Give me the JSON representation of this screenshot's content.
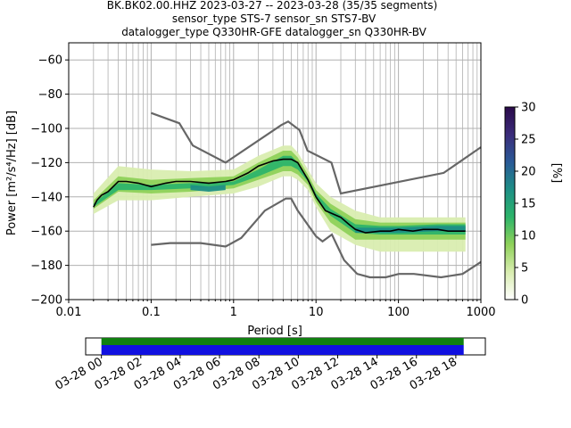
{
  "chart_data": {
    "type": "heatmap",
    "title_lines": [
      "BK.BK02.00.HHZ   2023-03-27 -- 2023-03-28  (35/35 segments)",
      "sensor_type STS-7 sensor_sn STS7-BV",
      "datalogger_type Q330HR-GFE datalogger_sn Q330HR-BV"
    ],
    "xlabel": "Period [s]",
    "ylabel": "Power [m²/s⁴/Hz] [dB]",
    "x_scale": "log",
    "xlim": [
      0.01,
      1000
    ],
    "ylim": [
      -200,
      -50
    ],
    "x_ticks": [
      {
        "value": 0.01,
        "label": "0.01"
      },
      {
        "value": 0.1,
        "label": "0.1"
      },
      {
        "value": 1,
        "label": "1"
      },
      {
        "value": 10,
        "label": "10"
      },
      {
        "value": 100,
        "label": "100"
      },
      {
        "value": 1000,
        "label": "1000"
      }
    ],
    "y_ticks": [
      {
        "value": -60,
        "label": "−60"
      },
      {
        "value": -80,
        "label": "−80"
      },
      {
        "value": -100,
        "label": "−100"
      },
      {
        "value": -120,
        "label": "−120"
      },
      {
        "value": -140,
        "label": "−140"
      },
      {
        "value": -160,
        "label": "−160"
      },
      {
        "value": -180,
        "label": "−180"
      },
      {
        "value": -200,
        "label": "−200"
      }
    ],
    "grid": true,
    "colorbar": {
      "label": "[%]",
      "range": [
        0,
        30
      ],
      "ticks": [
        {
          "value": 0,
          "label": "0"
        },
        {
          "value": 5,
          "label": "5"
        },
        {
          "value": 10,
          "label": "10"
        },
        {
          "value": 15,
          "label": "15"
        },
        {
          "value": 20,
          "label": "20"
        },
        {
          "value": 25,
          "label": "25"
        },
        {
          "value": 30,
          "label": "30"
        }
      ],
      "colors": [
        "#ffffff",
        "#d9edb0",
        "#8fd15a",
        "#2db46a",
        "#1e8f86",
        "#2a5a97",
        "#3b2c7a",
        "#2a0a4a"
      ]
    },
    "mean_curve": {
      "color": "#000000",
      "points": [
        [
          0.02,
          -146
        ],
        [
          0.022,
          -142
        ],
        [
          0.025,
          -139
        ],
        [
          0.03,
          -137
        ],
        [
          0.04,
          -131
        ],
        [
          0.05,
          -131
        ],
        [
          0.07,
          -132
        ],
        [
          0.1,
          -134
        ],
        [
          0.15,
          -132
        ],
        [
          0.2,
          -131
        ],
        [
          0.3,
          -131
        ],
        [
          0.5,
          -132
        ],
        [
          0.8,
          -131
        ],
        [
          1,
          -130
        ],
        [
          1.5,
          -126
        ],
        [
          2,
          -122
        ],
        [
          3,
          -119
        ],
        [
          4,
          -118
        ],
        [
          5,
          -118
        ],
        [
          6,
          -120
        ],
        [
          8,
          -130
        ],
        [
          10,
          -140
        ],
        [
          13,
          -148
        ],
        [
          20,
          -152
        ],
        [
          25,
          -156
        ],
        [
          30,
          -159
        ],
        [
          40,
          -161
        ],
        [
          60,
          -160
        ],
        [
          80,
          -160
        ],
        [
          100,
          -159
        ],
        [
          150,
          -160
        ],
        [
          200,
          -159
        ],
        [
          300,
          -159
        ],
        [
          400,
          -160
        ],
        [
          650,
          -160
        ]
      ]
    },
    "noise_models": [
      {
        "name": "high",
        "color": "#666666",
        "points": [
          [
            0.1,
            -91
          ],
          [
            0.22,
            -97
          ],
          [
            0.32,
            -110
          ],
          [
            0.8,
            -120
          ],
          [
            3.8,
            -98
          ],
          [
            4.6,
            -96
          ],
          [
            6.3,
            -101
          ],
          [
            7.9,
            -113
          ],
          [
            15.4,
            -120
          ],
          [
            20,
            -138
          ],
          [
            354,
            -126
          ],
          [
            1000,
            -111
          ]
        ]
      },
      {
        "name": "low",
        "color": "#666666",
        "points": [
          [
            0.1,
            -168
          ],
          [
            0.17,
            -167
          ],
          [
            0.4,
            -167
          ],
          [
            0.8,
            -169
          ],
          [
            1.24,
            -164
          ],
          [
            2.4,
            -148
          ],
          [
            4.3,
            -141
          ],
          [
            5,
            -141
          ],
          [
            6,
            -148
          ],
          [
            10,
            -163
          ],
          [
            12,
            -166
          ],
          [
            15.6,
            -162
          ],
          [
            21.9,
            -177
          ],
          [
            31.6,
            -185
          ],
          [
            45,
            -187
          ],
          [
            70,
            -187
          ],
          [
            101,
            -185
          ],
          [
            154,
            -185
          ],
          [
            328,
            -187
          ],
          [
            600,
            -185
          ],
          [
            1000,
            -178
          ]
        ]
      }
    ],
    "density_bands": [
      {
        "shade": 1,
        "upper": [
          [
            0.02,
            -138
          ],
          [
            0.04,
            -122
          ],
          [
            0.1,
            -124
          ],
          [
            0.3,
            -125
          ],
          [
            1,
            -124
          ],
          [
            2,
            -116
          ],
          [
            4,
            -110
          ],
          [
            5,
            -110
          ],
          [
            6,
            -114
          ],
          [
            8,
            -124
          ],
          [
            10,
            -132
          ],
          [
            15,
            -140
          ],
          [
            30,
            -148
          ],
          [
            60,
            -152
          ],
          [
            100,
            -152
          ],
          [
            300,
            -152
          ],
          [
            650,
            -152
          ]
        ],
        "lower": [
          [
            0.02,
            -150
          ],
          [
            0.04,
            -142
          ],
          [
            0.1,
            -142
          ],
          [
            0.3,
            -140
          ],
          [
            1,
            -138
          ],
          [
            2,
            -134
          ],
          [
            4,
            -128
          ],
          [
            5,
            -128
          ],
          [
            6,
            -130
          ],
          [
            8,
            -136
          ],
          [
            10,
            -146
          ],
          [
            15,
            -160
          ],
          [
            30,
            -168
          ],
          [
            60,
            -172
          ],
          [
            100,
            -172
          ],
          [
            300,
            -172
          ],
          [
            650,
            -172
          ]
        ]
      },
      {
        "shade": 2,
        "upper": [
          [
            0.02,
            -142
          ],
          [
            0.04,
            -128
          ],
          [
            0.1,
            -130
          ],
          [
            0.3,
            -129
          ],
          [
            1,
            -128
          ],
          [
            2,
            -120
          ],
          [
            4,
            -113
          ],
          [
            5,
            -113
          ],
          [
            6,
            -117
          ],
          [
            8,
            -127
          ],
          [
            10,
            -136
          ],
          [
            15,
            -144
          ],
          [
            30,
            -153
          ],
          [
            60,
            -155
          ],
          [
            100,
            -155
          ],
          [
            300,
            -155
          ],
          [
            650,
            -155
          ]
        ],
        "lower": [
          [
            0.02,
            -147
          ],
          [
            0.04,
            -137
          ],
          [
            0.1,
            -138
          ],
          [
            0.3,
            -137
          ],
          [
            1,
            -135
          ],
          [
            2,
            -130
          ],
          [
            4,
            -125
          ],
          [
            5,
            -125
          ],
          [
            6,
            -127
          ],
          [
            8,
            -133
          ],
          [
            10,
            -143
          ],
          [
            15,
            -155
          ],
          [
            30,
            -165
          ],
          [
            60,
            -165
          ],
          [
            100,
            -165
          ],
          [
            300,
            -165
          ],
          [
            650,
            -165
          ]
        ]
      },
      {
        "shade": 3,
        "upper": [
          [
            0.02,
            -144
          ],
          [
            0.04,
            -132
          ],
          [
            0.1,
            -133
          ],
          [
            0.3,
            -132
          ],
          [
            1,
            -131
          ],
          [
            2,
            -124
          ],
          [
            4,
            -116
          ],
          [
            5,
            -116
          ],
          [
            6,
            -120
          ],
          [
            8,
            -129
          ],
          [
            10,
            -138
          ],
          [
            15,
            -147
          ],
          [
            30,
            -156
          ],
          [
            60,
            -157
          ],
          [
            100,
            -157
          ],
          [
            300,
            -156
          ],
          [
            650,
            -156
          ]
        ],
        "lower": [
          [
            0.02,
            -146
          ],
          [
            0.04,
            -136
          ],
          [
            0.1,
            -136
          ],
          [
            0.3,
            -135
          ],
          [
            1,
            -133
          ],
          [
            2,
            -128
          ],
          [
            4,
            -122
          ],
          [
            5,
            -122
          ],
          [
            6,
            -124
          ],
          [
            8,
            -131
          ],
          [
            10,
            -141
          ],
          [
            15,
            -151
          ],
          [
            30,
            -161
          ],
          [
            60,
            -162
          ],
          [
            100,
            -162
          ],
          [
            300,
            -162
          ],
          [
            650,
            -162
          ]
        ]
      },
      {
        "shade": 4,
        "upper": [
          [
            0.3,
            -133
          ],
          [
            0.5,
            -134
          ],
          [
            0.8,
            -133
          ]
        ],
        "lower": [
          [
            0.3,
            -136
          ],
          [
            0.5,
            -137
          ],
          [
            0.8,
            -136
          ]
        ]
      },
      {
        "shade": 4,
        "upper": [
          [
            30,
            -158
          ],
          [
            60,
            -158
          ],
          [
            100,
            -158
          ],
          [
            300,
            -157
          ],
          [
            650,
            -157
          ]
        ],
        "lower": [
          [
            30,
            -161
          ],
          [
            60,
            -161
          ],
          [
            100,
            -161
          ],
          [
            300,
            -160
          ],
          [
            650,
            -160
          ]
        ]
      }
    ]
  },
  "timeline": {
    "tick_labels": [
      "03-28 00",
      "03-28 02",
      "03-28 04",
      "03-28 06",
      "03-28 08",
      "03-28 10",
      "03-28 12",
      "03-28 14",
      "03-28 16",
      "03-28 18"
    ],
    "tick_hours": [
      0,
      2,
      4,
      6,
      8,
      10,
      12,
      14,
      16,
      18
    ],
    "hour_range": [
      -0.8,
      19.5
    ],
    "coverage_hours": [
      0,
      18.4
    ],
    "colors": {
      "data": "#1010e0",
      "gaps": "#108010"
    }
  }
}
